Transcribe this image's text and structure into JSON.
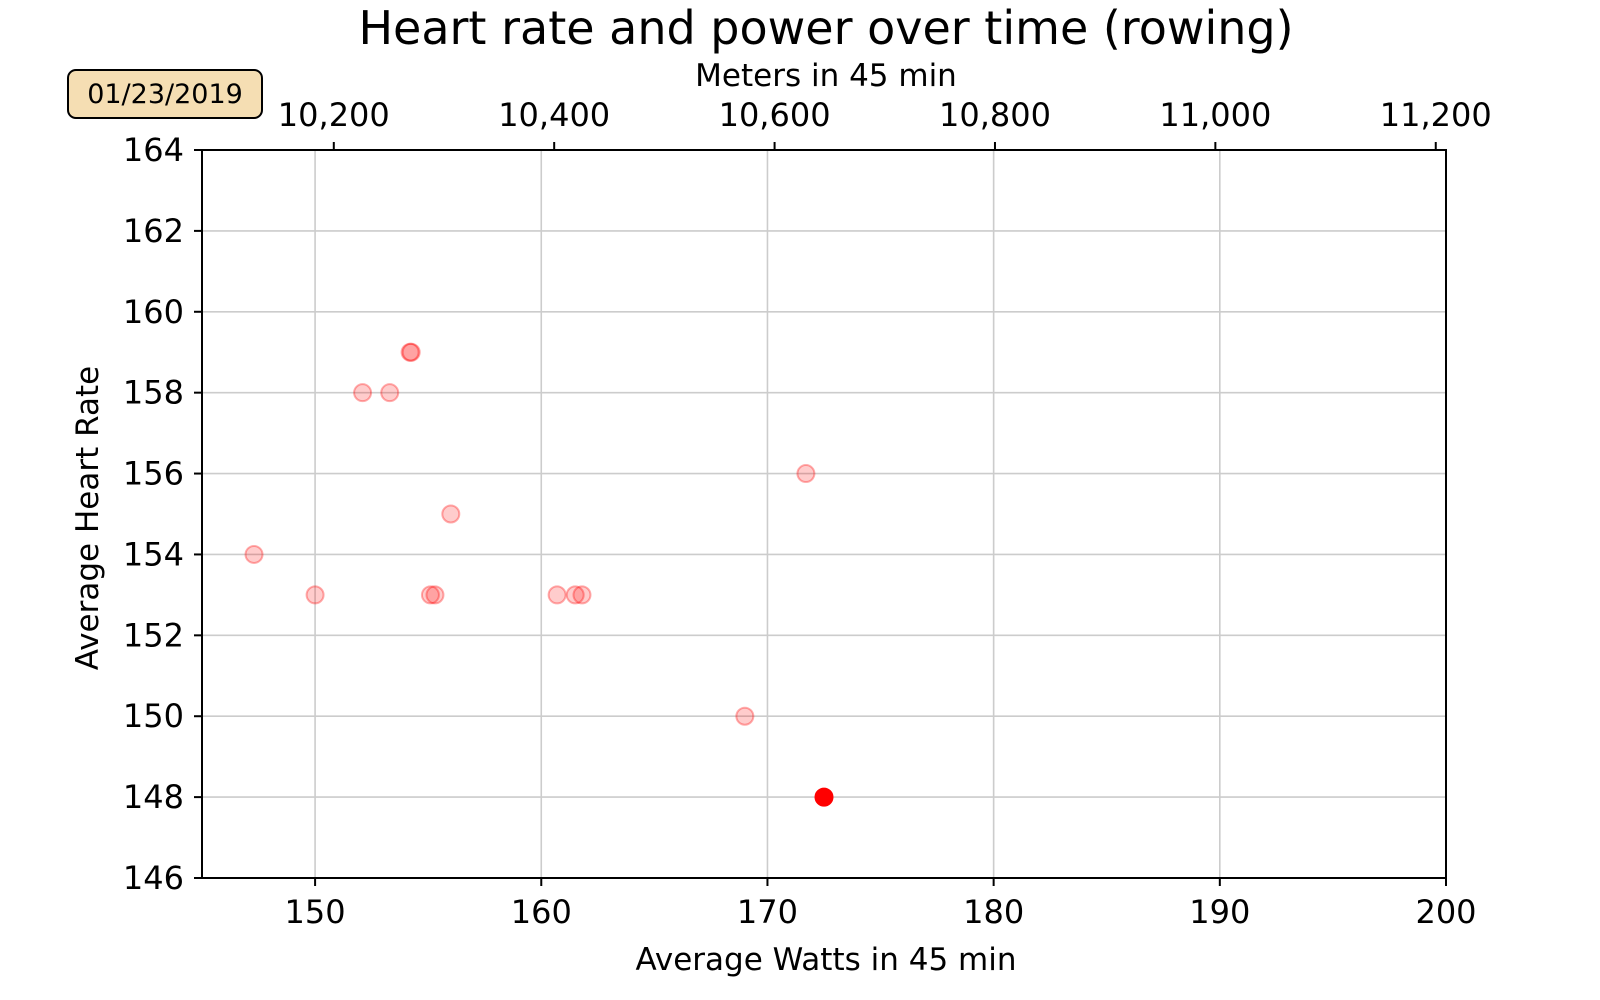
{
  "chart_data": {
    "type": "scatter",
    "title": "Heart rate and power over time (rowing)",
    "xlabel": "Average Watts in 45 min",
    "ylabel": "Average Heart Rate",
    "top_xlabel": "Meters in 45 min",
    "date_badge": "01/23/2019",
    "xlim": [
      145,
      200
    ],
    "ylim": [
      146,
      164
    ],
    "x_ticks": [
      "150",
      "160",
      "170",
      "180",
      "190",
      "200"
    ],
    "x_tick_values": [
      150,
      160,
      170,
      180,
      190,
      200
    ],
    "y_ticks": [
      "146",
      "148",
      "150",
      "152",
      "154",
      "156",
      "158",
      "160",
      "162",
      "164"
    ],
    "y_tick_values": [
      146,
      148,
      150,
      152,
      154,
      156,
      158,
      160,
      162,
      164
    ],
    "top_x_ticks": [
      "10,200",
      "10,400",
      "10,600",
      "10,800",
      "11,000",
      "11,200"
    ],
    "top_x_tick_values": [
      10200,
      10400,
      10600,
      10800,
      11000,
      11200
    ],
    "grid": true,
    "colors": {
      "point": "#ff0000",
      "faded_point_opacity": 0.2,
      "badge_fill": "#f5deb3",
      "grid": "#cccccc"
    },
    "points": [
      {
        "x": 147.3,
        "y": 154,
        "highlight": false
      },
      {
        "x": 150.0,
        "y": 153,
        "highlight": false
      },
      {
        "x": 152.1,
        "y": 158,
        "highlight": false
      },
      {
        "x": 153.3,
        "y": 158,
        "highlight": false
      },
      {
        "x": 154.2,
        "y": 159,
        "highlight": false
      },
      {
        "x": 154.25,
        "y": 159,
        "highlight": false
      },
      {
        "x": 155.1,
        "y": 153,
        "highlight": false
      },
      {
        "x": 155.3,
        "y": 153,
        "highlight": false
      },
      {
        "x": 156.0,
        "y": 155,
        "highlight": false
      },
      {
        "x": 160.7,
        "y": 153,
        "highlight": false
      },
      {
        "x": 161.5,
        "y": 153,
        "highlight": false
      },
      {
        "x": 161.8,
        "y": 153,
        "highlight": false
      },
      {
        "x": 169.0,
        "y": 150,
        "highlight": false
      },
      {
        "x": 171.7,
        "y": 156,
        "highlight": false
      },
      {
        "x": 172.5,
        "y": 148,
        "highlight": true
      }
    ]
  }
}
